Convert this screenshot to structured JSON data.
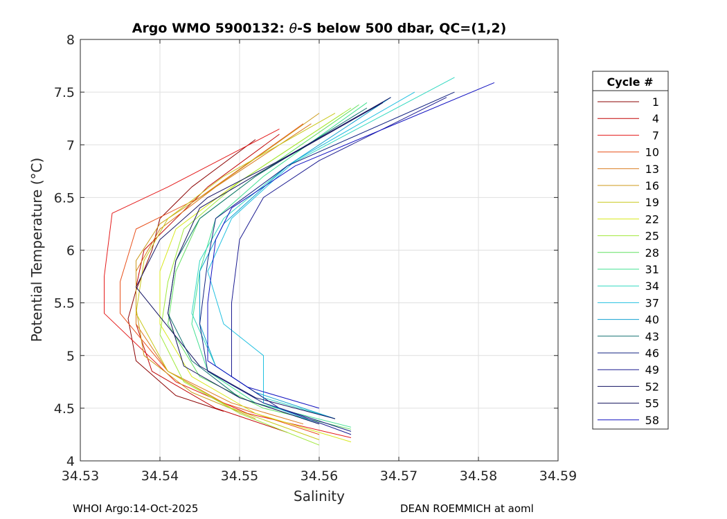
{
  "chart_data": {
    "type": "line",
    "title": "Argo WMO 5900132: θ-S below 500 dbar,  QC=(1,2)",
    "title_parts": {
      "prefix": "Argo WMO 5900132: ",
      "theta": "θ",
      "suffix": "-S below 500 dbar,  QC=(1,2)"
    },
    "xlabel": "Salinity",
    "ylabel": "Potential Temperature (°C)",
    "xlim": [
      34.53,
      34.59
    ],
    "ylim": [
      4,
      8
    ],
    "xticks": [
      "34.53",
      "34.54",
      "34.55",
      "34.56",
      "34.57",
      "34.58",
      "34.59"
    ],
    "yticks": [
      "4",
      "4.5",
      "5",
      "5.5",
      "6",
      "6.5",
      "7",
      "7.5",
      "8"
    ],
    "grid": true,
    "legend": {
      "title": "Cycle #",
      "placement": "outside-right",
      "entries": [
        "1",
        "4",
        "7",
        "10",
        "13",
        "16",
        "19",
        "22",
        "25",
        "28",
        "31",
        "34",
        "37",
        "40",
        "43",
        "46",
        "49",
        "52",
        "55",
        "58"
      ],
      "colors": [
        "#8b0000",
        "#c00000",
        "#e41a1a",
        "#e8501a",
        "#d9781a",
        "#cc9a1a",
        "#c8c81a",
        "#d8e81a",
        "#a0e83a",
        "#60e060",
        "#40e090",
        "#30d8c0",
        "#20c0e0",
        "#10a0d0",
        "#107070",
        "#102080",
        "#1a1a90",
        "#101060",
        "#10105a",
        "#1010c0"
      ]
    },
    "series": [
      {
        "name": "1",
        "points": [
          [
            34.548,
            4.47
          ],
          [
            34.542,
            4.62
          ],
          [
            34.537,
            4.95
          ],
          [
            34.536,
            5.35
          ],
          [
            34.537,
            5.62
          ],
          [
            34.539,
            6.0
          ],
          [
            34.54,
            6.3
          ],
          [
            34.544,
            6.6
          ],
          [
            34.552,
            7.05
          ]
        ]
      },
      {
        "name": "4",
        "points": [
          [
            34.556,
            4.27
          ],
          [
            34.547,
            4.5
          ],
          [
            34.539,
            4.85
          ],
          [
            34.537,
            5.3
          ],
          [
            34.537,
            5.65
          ],
          [
            34.538,
            6.0
          ],
          [
            34.542,
            6.3
          ],
          [
            34.546,
            6.6
          ],
          [
            34.555,
            7.1
          ]
        ]
      },
      {
        "name": "7",
        "points": [
          [
            34.564,
            4.22
          ],
          [
            34.551,
            4.45
          ],
          [
            34.542,
            4.75
          ],
          [
            34.533,
            5.4
          ],
          [
            34.533,
            5.75
          ],
          [
            34.534,
            6.35
          ],
          [
            34.541,
            6.6
          ],
          [
            34.555,
            7.15
          ]
        ]
      },
      {
        "name": "10",
        "points": [
          [
            34.56,
            4.25
          ],
          [
            34.548,
            4.55
          ],
          [
            34.541,
            4.85
          ],
          [
            34.535,
            5.4
          ],
          [
            34.535,
            5.7
          ],
          [
            34.537,
            6.2
          ],
          [
            34.545,
            6.5
          ],
          [
            34.558,
            7.2
          ]
        ]
      },
      {
        "name": "13",
        "points": [
          [
            34.558,
            4.35
          ],
          [
            34.549,
            4.55
          ],
          [
            34.541,
            4.85
          ],
          [
            34.537,
            5.3
          ],
          [
            34.537,
            5.8
          ],
          [
            34.54,
            6.2
          ],
          [
            34.547,
            6.6
          ],
          [
            34.559,
            7.2
          ]
        ]
      },
      {
        "name": "16",
        "points": [
          [
            34.552,
            4.4
          ],
          [
            34.544,
            4.65
          ],
          [
            34.538,
            5.0
          ],
          [
            34.537,
            5.45
          ],
          [
            34.537,
            5.9
          ],
          [
            34.54,
            6.25
          ],
          [
            34.546,
            6.55
          ],
          [
            34.56,
            7.3
          ]
        ]
      },
      {
        "name": "19",
        "points": [
          [
            34.56,
            4.2
          ],
          [
            34.549,
            4.5
          ],
          [
            34.541,
            4.85
          ],
          [
            34.537,
            5.4
          ],
          [
            34.538,
            5.9
          ],
          [
            34.541,
            6.3
          ],
          [
            34.548,
            6.7
          ],
          [
            34.562,
            7.3
          ]
        ]
      },
      {
        "name": "22",
        "points": [
          [
            34.564,
            4.18
          ],
          [
            34.552,
            4.45
          ],
          [
            34.544,
            4.8
          ],
          [
            34.54,
            5.3
          ],
          [
            34.54,
            5.8
          ],
          [
            34.542,
            6.2
          ],
          [
            34.549,
            6.6
          ],
          [
            34.563,
            7.3
          ]
        ]
      },
      {
        "name": "25",
        "points": [
          [
            34.56,
            4.15
          ],
          [
            34.55,
            4.45
          ],
          [
            34.543,
            4.75
          ],
          [
            34.54,
            5.2
          ],
          [
            34.541,
            5.7
          ],
          [
            34.543,
            6.2
          ],
          [
            34.55,
            6.65
          ],
          [
            34.564,
            7.35
          ]
        ]
      },
      {
        "name": "28",
        "points": [
          [
            34.564,
            4.3
          ],
          [
            34.553,
            4.5
          ],
          [
            34.545,
            4.8
          ],
          [
            34.541,
            5.3
          ],
          [
            34.542,
            5.8
          ],
          [
            34.545,
            6.3
          ],
          [
            34.552,
            6.7
          ],
          [
            34.565,
            7.38
          ]
        ]
      },
      {
        "name": "31",
        "points": [
          [
            34.564,
            4.32
          ],
          [
            34.552,
            4.55
          ],
          [
            34.546,
            4.85
          ],
          [
            34.544,
            5.3
          ],
          [
            34.545,
            5.8
          ],
          [
            34.547,
            6.3
          ],
          [
            34.553,
            6.7
          ],
          [
            34.566,
            7.4
          ]
        ]
      },
      {
        "name": "34",
        "points": [
          [
            34.562,
            4.4
          ],
          [
            34.553,
            4.6
          ],
          [
            34.547,
            4.9
          ],
          [
            34.544,
            5.4
          ],
          [
            34.545,
            5.9
          ],
          [
            34.548,
            6.3
          ],
          [
            34.556,
            6.8
          ],
          [
            34.577,
            7.64
          ]
        ]
      },
      {
        "name": "37",
        "points": [
          [
            34.56,
            4.35
          ],
          [
            34.553,
            4.55
          ],
          [
            34.553,
            5.0
          ],
          [
            34.548,
            5.3
          ],
          [
            34.546,
            5.8
          ],
          [
            34.549,
            6.3
          ],
          [
            34.557,
            6.85
          ],
          [
            34.572,
            7.5
          ]
        ]
      },
      {
        "name": "40",
        "points": [
          [
            34.562,
            4.4
          ],
          [
            34.552,
            4.65
          ],
          [
            34.547,
            4.9
          ],
          [
            34.545,
            5.3
          ],
          [
            34.545,
            5.8
          ],
          [
            34.548,
            6.25
          ],
          [
            34.556,
            6.8
          ],
          [
            34.569,
            7.45
          ]
        ]
      },
      {
        "name": "43",
        "points": [
          [
            34.56,
            4.35
          ],
          [
            34.55,
            4.6
          ],
          [
            34.544,
            4.95
          ],
          [
            34.541,
            5.4
          ],
          [
            34.542,
            5.9
          ],
          [
            34.545,
            6.3
          ],
          [
            34.552,
            6.7
          ],
          [
            34.566,
            7.35
          ]
        ]
      },
      {
        "name": "46",
        "points": [
          [
            34.564,
            4.28
          ],
          [
            34.553,
            4.55
          ],
          [
            34.546,
            4.85
          ],
          [
            34.545,
            5.3
          ],
          [
            34.546,
            5.9
          ],
          [
            34.547,
            6.3
          ],
          [
            34.556,
            6.8
          ],
          [
            34.577,
            7.5
          ]
        ]
      },
      {
        "name": "49",
        "points": [
          [
            34.564,
            4.25
          ],
          [
            34.555,
            4.5
          ],
          [
            34.549,
            4.8
          ],
          [
            34.549,
            5.5
          ],
          [
            34.55,
            6.1
          ],
          [
            34.553,
            6.5
          ],
          [
            34.56,
            6.85
          ],
          [
            34.576,
            7.45
          ]
        ]
      },
      {
        "name": "52",
        "points": [
          [
            34.562,
            4.4
          ],
          [
            34.552,
            4.6
          ],
          [
            34.545,
            4.9
          ],
          [
            34.537,
            5.65
          ],
          [
            34.54,
            6.1
          ],
          [
            34.546,
            6.5
          ],
          [
            34.555,
            6.85
          ],
          [
            34.569,
            7.45
          ]
        ]
      },
      {
        "name": "55",
        "points": [
          [
            34.56,
            4.35
          ],
          [
            34.55,
            4.6
          ],
          [
            34.543,
            4.9
          ],
          [
            34.541,
            5.4
          ],
          [
            34.542,
            5.9
          ],
          [
            34.545,
            6.4
          ],
          [
            34.554,
            6.8
          ],
          [
            34.568,
            7.4
          ]
        ]
      },
      {
        "name": "58",
        "points": [
          [
            34.56,
            4.5
          ],
          [
            34.551,
            4.7
          ],
          [
            34.546,
            4.95
          ],
          [
            34.546,
            5.5
          ],
          [
            34.547,
            6.1
          ],
          [
            34.549,
            6.4
          ],
          [
            34.557,
            6.8
          ],
          [
            34.582,
            7.59
          ]
        ]
      }
    ]
  },
  "footer": {
    "left": "WHOI Argo:14-Oct-2025",
    "right": "DEAN ROEMMICH at aoml"
  }
}
